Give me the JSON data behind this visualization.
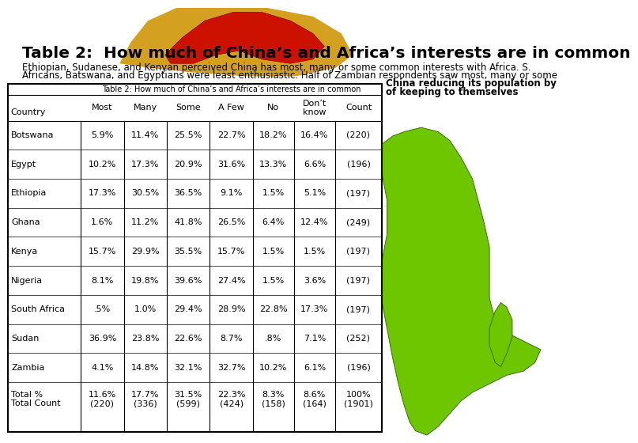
{
  "title_main": "Table 2:  How much of China’s and Africa’s interests are in common",
  "subtitle1": "Ethiopian, Sudanese, and Kenyan perceived China has most, many or some common interests with Africa. S.",
  "subtitle2": "Africans, Batswana, and Egyptians were least enthusiastic. Half of Zambian respondents saw most, many or some",
  "subtitle3": "China reducing its population by",
  "subtitle4": "of keeping to themselves",
  "table_title": "Table 2: How much of China’s and Africa’s interests are in common",
  "col_headers": [
    "Country",
    "Most",
    "Many",
    "Some",
    "A Few",
    "No",
    "Don’t\nknow",
    "Count"
  ],
  "rows": [
    [
      "Botswana",
      "5.9%",
      "11.4%",
      "25.5%",
      "22.7%",
      "18.2%",
      "16.4%",
      "(220)"
    ],
    [
      "Egypt",
      "10.2%",
      "17.3%",
      "20.9%",
      "31.6%",
      "13.3%",
      "6.6%",
      "(196)"
    ],
    [
      "Ethiopia",
      "17.3%",
      "30.5%",
      "36.5%",
      "9.1%",
      "1.5%",
      "5.1%",
      "(197)"
    ],
    [
      "Ghana",
      "1.6%",
      "11.2%",
      "41.8%",
      "26.5%",
      "6.4%",
      "12.4%",
      "(249)"
    ],
    [
      "Kenya",
      "15.7%",
      "29.9%",
      "35.5%",
      "15.7%",
      "1.5%",
      "1.5%",
      "(197)"
    ],
    [
      "Nigeria",
      "8.1%",
      "19.8%",
      "39.6%",
      "27.4%",
      "1.5%",
      "3.6%",
      "(197)"
    ],
    [
      "South Africa",
      ".5%",
      "1.0%",
      "29.4%",
      "28.9%",
      "22.8%",
      "17.3%",
      "(197)"
    ],
    [
      "Sudan",
      "36.9%",
      "23.8%",
      "22.6%",
      "8.7%",
      ".8%",
      "7.1%",
      "(252)"
    ],
    [
      "Zambia",
      "4.1%",
      "14.8%",
      "32.1%",
      "32.7%",
      "10.2%",
      "6.1%",
      "(196)"
    ],
    [
      "Total %\nTotal Count",
      "11.6%\n(220)",
      "17.7%\n(336)",
      "31.5%\n(599)",
      "22.3%\n(424)",
      "8.3%\n(158)",
      "8.6%\n(164)",
      "100%\n(1901)"
    ]
  ],
  "bg_color": "#ffffff",
  "africa_green": "#6dc600",
  "africa_edge": "#3a7000",
  "china_red": "#cc1100",
  "china_edge": "#880000",
  "china_bg_yellow": "#d4a020",
  "table_title_fontsize": 7.0,
  "header_fontsize": 8.0,
  "data_fontsize": 8.0,
  "title_fontsize": 14.5
}
